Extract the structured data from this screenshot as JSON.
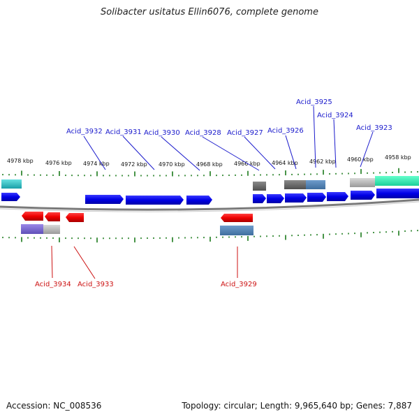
{
  "title": "Solibacter usitatus Ellin6076, complete genome",
  "footer": {
    "accession": "Accession: NC_008536",
    "summary": "Topology: circular; Length: 9,965,640 bp; Genes: 7,887"
  },
  "colors": {
    "forward_gene": "#0000ee",
    "reverse_gene": "#ee0000",
    "forward_label": "#1a1acc",
    "reverse_label": "#cc1111",
    "tick": "#1a7a1a",
    "backbone": "#808080"
  },
  "scale": {
    "tick_labels": [
      "4978 kbp",
      "4976 kbp",
      "4974 kbp",
      "4972 kbp",
      "4970 kbp",
      "4968 kbp",
      "4966 kbp",
      "4964 kbp",
      "4962 kbp",
      "4960 kbp",
      "4958 kbp"
    ]
  },
  "forward_labels": [
    "Acid_3932",
    "Acid_3931",
    "Acid_3930",
    "Acid_3928",
    "Acid_3927",
    "Acid_3926",
    "Acid_3925",
    "Acid_3924",
    "Acid_3923"
  ],
  "reverse_labels": [
    "Acid_3934",
    "Acid_3933",
    "Acid_3929"
  ]
}
